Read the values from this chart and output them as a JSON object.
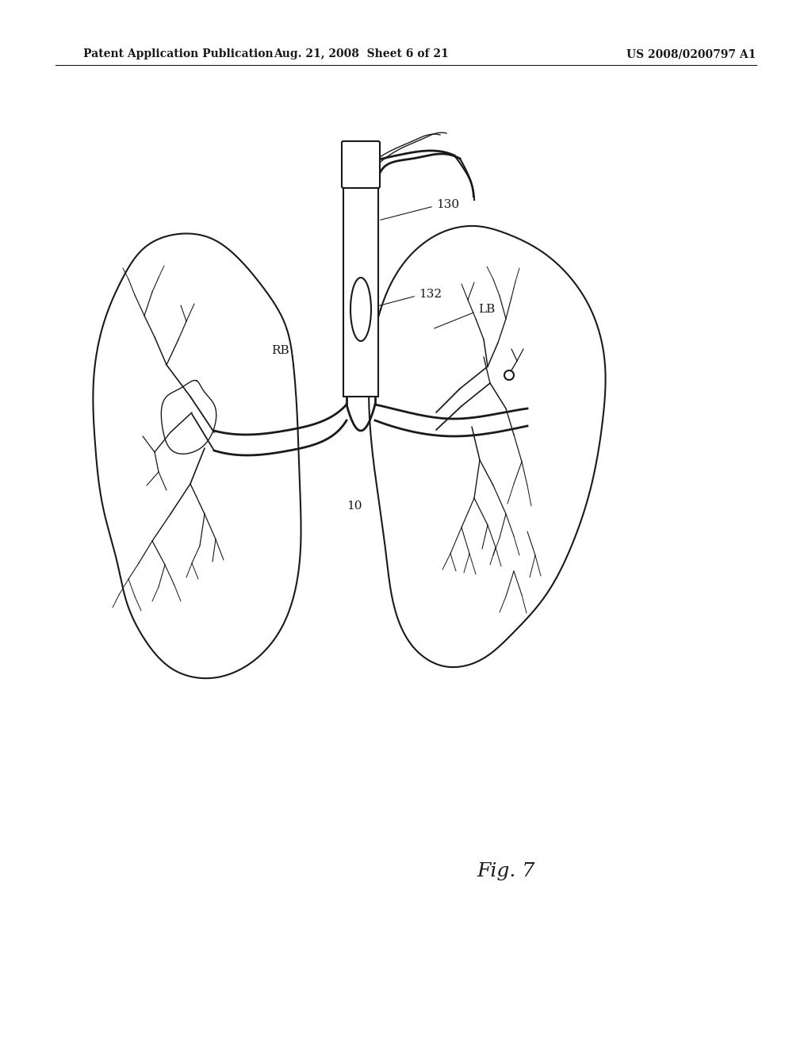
{
  "background_color": "#ffffff",
  "header_left": "Patent Application Publication",
  "header_mid": "Aug. 21, 2008  Sheet 6 of 21",
  "header_right": "US 2008/0200797 A1",
  "fig_label": "Fig. 7",
  "label_130": "130",
  "label_132": "132",
  "label_RB": "RB",
  "label_LB": "LB",
  "label_10": "10",
  "line_color": "#1a1a1a",
  "text_color": "#1a1a1a",
  "header_fontsize": 10,
  "fig_label_fontsize": 18,
  "annotation_fontsize": 11
}
